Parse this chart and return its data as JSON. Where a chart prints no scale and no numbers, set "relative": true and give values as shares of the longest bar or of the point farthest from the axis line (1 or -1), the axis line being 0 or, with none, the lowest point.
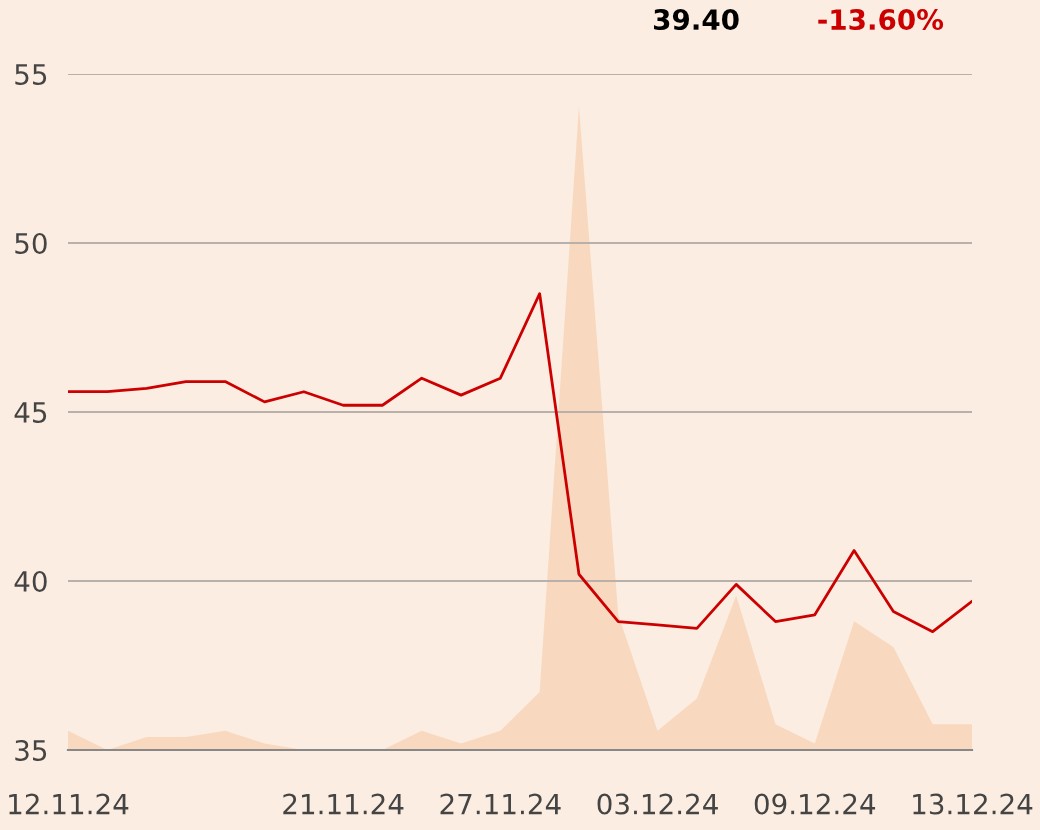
{
  "chart_data": [
    {
      "type": "line",
      "categories": [
        "12.11.24",
        null,
        null,
        null,
        null,
        null,
        null,
        "21.11.24",
        null,
        null,
        null,
        "27.11.24",
        null,
        null,
        null,
        "03.12.24",
        null,
        null,
        null,
        "09.12.24",
        null,
        null,
        null,
        "13.12.24"
      ],
      "series": [
        {
          "color": "#cc0000",
          "values": [
            45.6,
            45.6,
            45.7,
            45.9,
            45.9,
            45.3,
            45.6,
            45.2,
            45.2,
            46.0,
            45.5,
            46.0,
            48.5,
            40.2,
            38.8,
            38.7,
            38.6,
            39.9,
            38.8,
            39.0,
            40.9,
            39.1,
            38.5,
            39.4
          ]
        }
      ],
      "ylim": [
        35,
        55
      ],
      "yticks": [
        35,
        40,
        45,
        50,
        55
      ],
      "grid": "y",
      "annotations": [
        "39.40",
        "-13.60%"
      ]
    },
    {
      "type": "area",
      "relative": true,
      "categories": [
        null,
        null,
        null,
        null,
        null,
        null,
        null,
        null,
        null,
        null,
        null,
        null,
        null,
        null,
        null,
        null,
        null,
        null,
        null,
        null,
        null,
        null,
        null,
        null
      ],
      "series": [
        {
          "color": "#f8d9c0",
          "values": [
            0.03,
            0,
            0.02,
            0.02,
            0.03,
            0.01,
            0,
            0,
            0,
            0.03,
            0.01,
            0.03,
            0.09,
            1,
            0.21,
            0.03,
            0.08,
            0.24,
            0.04,
            0.01,
            0.2,
            0.16,
            0.04,
            0.04
          ]
        }
      ]
    }
  ]
}
